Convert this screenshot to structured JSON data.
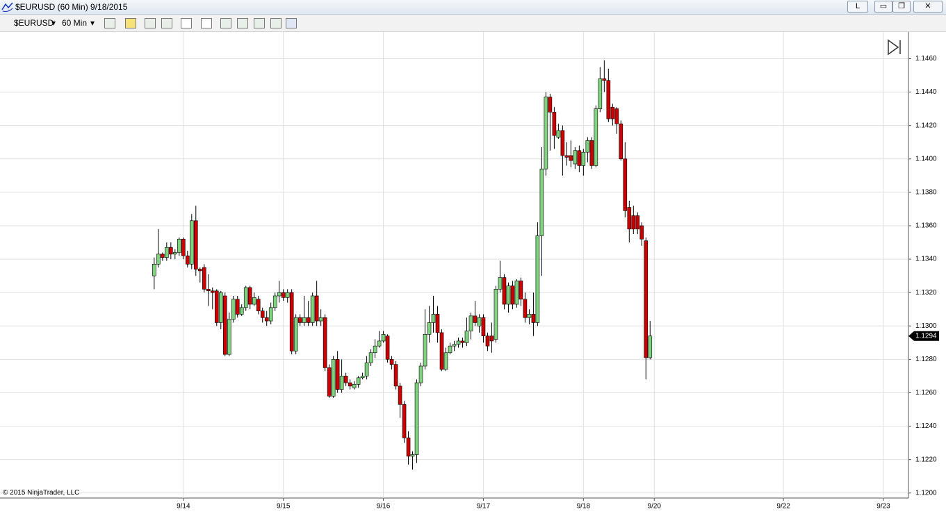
{
  "window": {
    "title": "$EURUSD (60 Min)  9/18/2015",
    "button": "L"
  },
  "toolbar": {
    "instrument": "$EURUSD",
    "interval": "60 Min"
  },
  "copyright": "© 2015 NinjaTrader, LLC",
  "chart_data": {
    "type": "candlestick",
    "up_color": "#7fd37f",
    "down_color": "#cc0000",
    "grid": true,
    "x": [
      -7,
      -6,
      -5,
      -4,
      -3,
      -2,
      -1,
      0,
      1,
      2,
      3,
      4,
      5,
      6,
      7,
      8,
      9,
      10,
      11,
      12,
      13,
      14,
      15,
      16,
      17,
      18,
      19,
      20,
      21,
      22,
      23,
      24,
      25,
      26,
      27,
      28,
      29,
      30,
      31,
      32,
      33,
      34,
      35,
      36,
      37,
      38,
      39,
      40,
      41,
      42,
      43,
      44,
      45,
      46,
      47,
      48,
      49,
      50,
      51,
      52,
      53,
      54,
      55,
      56,
      57,
      58,
      59,
      60,
      61,
      62,
      63,
      64,
      65,
      66,
      67,
      68,
      69,
      70,
      71,
      72,
      73,
      74,
      75,
      76,
      77,
      78,
      79,
      80,
      81,
      82,
      83,
      84,
      85,
      86,
      87,
      88,
      89,
      90,
      91,
      92,
      93,
      94,
      95,
      96,
      97,
      98,
      99,
      100,
      101,
      102,
      103,
      104,
      105,
      106,
      107,
      108,
      109,
      110,
      111,
      112
    ],
    "open": [
      1.133,
      1.1337,
      1.1343,
      1.1341,
      1.1347,
      1.1343,
      1.1344,
      1.1352,
      1.1342,
      1.1337,
      1.1363,
      1.1334,
      1.1335,
      1.1322,
      1.1321,
      1.1321,
      1.1302,
      1.1318,
      1.1283,
      1.1304,
      1.1316,
      1.1307,
      1.1311,
      1.1323,
      1.1313,
      1.1316,
      1.1309,
      1.1305,
      1.1303,
      1.1311,
      1.1318,
      1.132,
      1.1317,
      1.132,
      1.1285,
      1.1305,
      1.1302,
      1.1305,
      1.1302,
      1.1318,
      1.1303,
      1.1305,
      1.1275,
      1.1258,
      1.128,
      1.1262,
      1.127,
      1.1266,
      1.1263,
      1.1265,
      1.1269,
      1.127,
      1.1278,
      1.1284,
      1.1288,
      1.1291,
      1.1294,
      1.128,
      1.1277,
      1.1264,
      1.1253,
      1.1233,
      1.1222,
      1.1223,
      1.1266,
      1.1276,
      1.1295,
      1.1302,
      1.1307,
      1.1296,
      1.1274,
      1.1284,
      1.1288,
      1.1289,
      1.1291,
      1.129,
      1.1297,
      1.1306,
      1.13,
      1.1305,
      1.1294,
      1.1294,
      1.1292,
      1.1322,
      1.1329,
      1.1313,
      1.1324,
      1.1313,
      1.1327,
      1.1316,
      1.1305,
      1.1307,
      1.1302,
      1.1354,
      1.1394,
      1.1437,
      1.1428,
      1.1413,
      1.1417,
      1.1402,
      1.1402,
      1.1397,
      1.1405,
      1.1396,
      1.1404,
      1.1411,
      1.1396,
      1.143,
      1.1448,
      1.1447,
      1.1431,
      1.143,
      1.1421,
      1.14,
      1.1371,
      1.1366,
      1.1366,
      1.136,
      1.1351,
      1.1281
    ],
    "high": [
      1.1341,
      1.1358,
      1.1344,
      1.135,
      1.135,
      1.1346,
      1.1353,
      1.1353,
      1.1345,
      1.1367,
      1.1372,
      1.1335,
      1.1337,
      1.1331,
      1.1323,
      1.1322,
      1.1321,
      1.132,
      1.1308,
      1.1318,
      1.1318,
      1.1313,
      1.1324,
      1.1324,
      1.132,
      1.1318,
      1.1311,
      1.1309,
      1.1314,
      1.132,
      1.1327,
      1.1322,
      1.1322,
      1.1322,
      1.1307,
      1.1307,
      1.1318,
      1.1315,
      1.132,
      1.1327,
      1.131,
      1.1307,
      1.1277,
      1.1282,
      1.1285,
      1.128,
      1.1272,
      1.1268,
      1.1267,
      1.127,
      1.1272,
      1.1282,
      1.1286,
      1.1292,
      1.1297,
      1.1297,
      1.1295,
      1.1282,
      1.1279,
      1.1266,
      1.1255,
      1.1237,
      1.1225,
      1.1268,
      1.1278,
      1.131,
      1.1312,
      1.1318,
      1.1312,
      1.1298,
      1.1287,
      1.129,
      1.1291,
      1.1293,
      1.1293,
      1.1305,
      1.1308,
      1.1315,
      1.1307,
      1.1307,
      1.1296,
      1.1302,
      1.1324,
      1.1339,
      1.1331,
      1.1326,
      1.1327,
      1.1328,
      1.1329,
      1.132,
      1.131,
      1.132,
      1.1362,
      1.1407,
      1.144,
      1.1439,
      1.1431,
      1.1421,
      1.142,
      1.141,
      1.1411,
      1.1407,
      1.1408,
      1.1406,
      1.1413,
      1.1413,
      1.1432,
      1.1455,
      1.1459,
      1.1454,
      1.1433,
      1.1431,
      1.1423,
      1.141,
      1.1375,
      1.1372,
      1.1368,
      1.1362,
      1.1353,
      1.1303
    ],
    "low": [
      1.1322,
      1.1335,
      1.1339,
      1.1339,
      1.134,
      1.134,
      1.1342,
      1.134,
      1.1335,
      1.1334,
      1.133,
      1.1326,
      1.132,
      1.1312,
      1.131,
      1.13,
      1.1298,
      1.1282,
      1.1282,
      1.1302,
      1.1305,
      1.1306,
      1.1309,
      1.131,
      1.1312,
      1.1307,
      1.1302,
      1.13,
      1.1301,
      1.1309,
      1.1314,
      1.1315,
      1.1314,
      1.1283,
      1.1283,
      1.13,
      1.13,
      1.13,
      1.13,
      1.13,
      1.13,
      1.1273,
      1.1257,
      1.1257,
      1.126,
      1.126,
      1.1264,
      1.1262,
      1.1262,
      1.1263,
      1.1268,
      1.1268,
      1.1276,
      1.1281,
      1.1287,
      1.129,
      1.1278,
      1.1274,
      1.1262,
      1.1245,
      1.123,
      1.1217,
      1.1214,
      1.1218,
      1.1264,
      1.1274,
      1.129,
      1.1296,
      1.129,
      1.1273,
      1.1273,
      1.1283,
      1.1285,
      1.1287,
      1.1287,
      1.1288,
      1.1292,
      1.13,
      1.1296,
      1.129,
      1.1285,
      1.1284,
      1.129,
      1.132,
      1.131,
      1.1308,
      1.131,
      1.1311,
      1.1312,
      1.1302,
      1.1301,
      1.1294,
      1.13,
      1.133,
      1.139,
      1.1405,
      1.1406,
      1.1412,
      1.139,
      1.1396,
      1.1395,
      1.1394,
      1.1392,
      1.139,
      1.1398,
      1.1394,
      1.1395,
      1.1428,
      1.144,
      1.1422,
      1.142,
      1.1415,
      1.1399,
      1.1365,
      1.135,
      1.1355,
      1.1355,
      1.1348,
      1.1268,
      1.128
    ],
    "close": [
      1.1337,
      1.1343,
      1.1341,
      1.1347,
      1.1343,
      1.1344,
      1.1352,
      1.1342,
      1.1337,
      1.1363,
      1.1334,
      1.1333,
      1.1322,
      1.1321,
      1.132,
      1.1302,
      1.132,
      1.1283,
      1.1304,
      1.1316,
      1.1307,
      1.1311,
      1.1323,
      1.1313,
      1.1317,
      1.1309,
      1.1305,
      1.1303,
      1.1311,
      1.1318,
      1.132,
      1.1317,
      1.132,
      1.1285,
      1.1305,
      1.1302,
      1.1305,
      1.1302,
      1.1318,
      1.1303,
      1.1305,
      1.1275,
      1.1258,
      1.128,
      1.1262,
      1.127,
      1.1266,
      1.1264,
      1.1265,
      1.1269,
      1.127,
      1.1278,
      1.1284,
      1.1288,
      1.1291,
      1.1295,
      1.128,
      1.1277,
      1.1264,
      1.1253,
      1.1233,
      1.1222,
      1.1223,
      1.1266,
      1.1276,
      1.1295,
      1.1302,
      1.1307,
      1.1296,
      1.1274,
      1.1284,
      1.1288,
      1.1289,
      1.1291,
      1.129,
      1.1297,
      1.1306,
      1.1302,
      1.1305,
      1.1294,
      1.1288,
      1.1291,
      1.1322,
      1.1329,
      1.1313,
      1.1324,
      1.1313,
      1.1327,
      1.1316,
      1.1305,
      1.1307,
      1.1302,
      1.1354,
      1.1394,
      1.1437,
      1.1428,
      1.1414,
      1.1417,
      1.1402,
      1.1401,
      1.1399,
      1.1405,
      1.1396,
      1.1404,
      1.1411,
      1.1396,
      1.143,
      1.1448,
      1.1447,
      1.1424,
      1.1424,
      1.1421,
      1.14,
      1.1369,
      1.1358,
      1.1358,
      1.1358,
      1.1352,
      1.1281,
      1.1294
    ],
    "last_price": {
      "value": 1.1294,
      "label": "1.1294"
    },
    "xlim": [
      -44,
      174
    ],
    "xticks": [
      {
        "value": 0,
        "label": "9/14"
      },
      {
        "value": 24,
        "label": "9/15"
      },
      {
        "value": 48,
        "label": "9/16"
      },
      {
        "value": 72,
        "label": "9/17"
      },
      {
        "value": 96,
        "label": "9/18"
      },
      {
        "value": 113,
        "label": "9/20"
      },
      {
        "value": 144,
        "label": "9/22"
      },
      {
        "value": 168,
        "label": "9/23"
      }
    ],
    "ylim": [
      1.1197,
      1.1476
    ],
    "yticks": [
      {
        "value": 1.12,
        "label": "1.1200"
      },
      {
        "value": 1.122,
        "label": "1.1220"
      },
      {
        "value": 1.124,
        "label": "1.1240"
      },
      {
        "value": 1.126,
        "label": "1.1260"
      },
      {
        "value": 1.128,
        "label": "1.1280"
      },
      {
        "value": 1.13,
        "label": "1.1300"
      },
      {
        "value": 1.132,
        "label": "1.1320"
      },
      {
        "value": 1.134,
        "label": "1.1340"
      },
      {
        "value": 1.136,
        "label": "1.1360"
      },
      {
        "value": 1.138,
        "label": "1.1380"
      },
      {
        "value": 1.14,
        "label": "1.1400"
      },
      {
        "value": 1.142,
        "label": "1.1420"
      },
      {
        "value": 1.144,
        "label": "1.1440"
      },
      {
        "value": 1.146,
        "label": "1.1460"
      }
    ]
  }
}
